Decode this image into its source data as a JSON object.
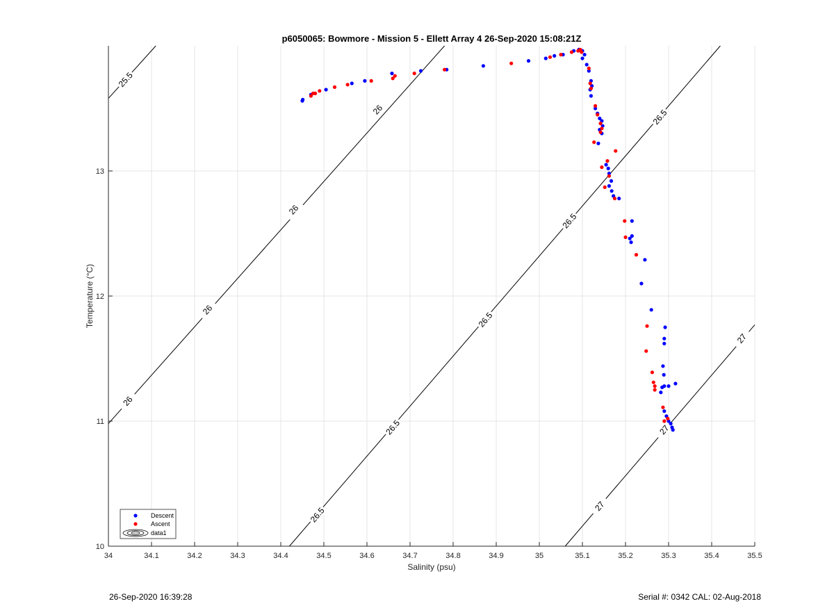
{
  "chart_data": {
    "type": "scatter",
    "title": "p6050065: Bowmore - Mission 5 - Ellett Array 4 26-Sep-2020 15:08:21Z",
    "xlabel": "Salinity (psu)",
    "ylabel": "Temperature (°C)",
    "xlim": [
      34,
      35.5
    ],
    "ylim": [
      10,
      14
    ],
    "x_ticks": [
      "34",
      "34.1",
      "34.2",
      "34.3",
      "34.4",
      "34.5",
      "34.6",
      "34.7",
      "34.8",
      "34.9",
      "35",
      "35.1",
      "35.2",
      "35.3",
      "35.4",
      "35.5"
    ],
    "y_ticks": [
      "10",
      "11",
      "12",
      "13"
    ],
    "grid": true,
    "legend_position": "bottom-left",
    "legend": [
      "Descent",
      "Ascent",
      "data1"
    ],
    "series": [
      {
        "name": "Descent",
        "color": "#0000ff",
        "points": [
          [
            34.45,
            13.56
          ],
          [
            34.451,
            13.57
          ],
          [
            34.47,
            13.61
          ],
          [
            34.505,
            13.65
          ],
          [
            34.565,
            13.7
          ],
          [
            34.595,
            13.72
          ],
          [
            34.658,
            13.78
          ],
          [
            34.725,
            13.8
          ],
          [
            34.785,
            13.81
          ],
          [
            34.87,
            13.84
          ],
          [
            34.975,
            13.88
          ],
          [
            35.015,
            13.9
          ],
          [
            35.035,
            13.92
          ],
          [
            35.055,
            13.93
          ],
          [
            35.08,
            13.96
          ],
          [
            35.092,
            13.97
          ],
          [
            35.1,
            13.96
          ],
          [
            35.105,
            13.93
          ],
          [
            35.1,
            13.9
          ],
          [
            35.11,
            13.85
          ],
          [
            35.115,
            13.8
          ],
          [
            35.12,
            13.72
          ],
          [
            35.122,
            13.68
          ],
          [
            35.118,
            13.65
          ],
          [
            35.12,
            13.6
          ],
          [
            35.13,
            13.5
          ],
          [
            35.135,
            13.46
          ],
          [
            35.14,
            13.42
          ],
          [
            35.145,
            13.4
          ],
          [
            35.147,
            13.36
          ],
          [
            35.14,
            13.33
          ],
          [
            35.145,
            13.3
          ],
          [
            35.137,
            13.22
          ],
          [
            35.155,
            13.05
          ],
          [
            35.16,
            13.02
          ],
          [
            35.162,
            12.98
          ],
          [
            35.167,
            12.92
          ],
          [
            35.162,
            12.88
          ],
          [
            35.168,
            12.84
          ],
          [
            35.172,
            12.8
          ],
          [
            35.185,
            12.78
          ],
          [
            35.215,
            12.6
          ],
          [
            35.21,
            12.46
          ],
          [
            35.215,
            12.48
          ],
          [
            35.213,
            12.43
          ],
          [
            35.245,
            12.29
          ],
          [
            35.237,
            12.1
          ],
          [
            35.26,
            11.89
          ],
          [
            35.292,
            11.75
          ],
          [
            35.29,
            11.66
          ],
          [
            35.29,
            11.62
          ],
          [
            35.287,
            11.44
          ],
          [
            35.289,
            11.37
          ],
          [
            35.285,
            11.27
          ],
          [
            35.29,
            11.28
          ],
          [
            35.3,
            11.28
          ],
          [
            35.282,
            11.23
          ],
          [
            35.316,
            11.3
          ],
          [
            35.29,
            11.08
          ],
          [
            35.295,
            11.04
          ],
          [
            35.3,
            11.0
          ],
          [
            35.305,
            10.98
          ],
          [
            35.308,
            10.95
          ],
          [
            35.31,
            10.93
          ]
        ]
      },
      {
        "name": "Ascent",
        "color": "#ff0000",
        "points": [
          [
            34.47,
            13.6
          ],
          [
            34.475,
            13.62
          ],
          [
            34.48,
            13.62
          ],
          [
            34.49,
            13.64
          ],
          [
            34.525,
            13.67
          ],
          [
            34.555,
            13.69
          ],
          [
            34.61,
            13.72
          ],
          [
            34.66,
            13.74
          ],
          [
            34.665,
            13.76
          ],
          [
            34.71,
            13.78
          ],
          [
            34.78,
            13.81
          ],
          [
            34.935,
            13.86
          ],
          [
            35.025,
            13.91
          ],
          [
            35.05,
            13.93
          ],
          [
            35.075,
            13.95
          ],
          [
            35.09,
            13.96
          ],
          [
            35.095,
            13.97
          ],
          [
            35.098,
            13.95
          ],
          [
            35.115,
            13.82
          ],
          [
            35.118,
            13.7
          ],
          [
            35.12,
            13.66
          ],
          [
            35.13,
            13.52
          ],
          [
            35.135,
            13.45
          ],
          [
            35.142,
            13.38
          ],
          [
            35.145,
            13.34
          ],
          [
            35.142,
            13.31
          ],
          [
            35.127,
            13.23
          ],
          [
            35.177,
            13.16
          ],
          [
            35.145,
            13.03
          ],
          [
            35.158,
            13.08
          ],
          [
            35.162,
            12.96
          ],
          [
            35.152,
            12.87
          ],
          [
            35.175,
            12.78
          ],
          [
            35.198,
            12.6
          ],
          [
            35.2,
            12.47
          ],
          [
            35.225,
            12.33
          ],
          [
            35.25,
            11.76
          ],
          [
            35.248,
            11.56
          ],
          [
            35.262,
            11.39
          ],
          [
            35.265,
            11.31
          ],
          [
            35.268,
            11.28
          ],
          [
            35.268,
            11.25
          ],
          [
            35.287,
            11.11
          ],
          [
            35.29,
            11.0
          ],
          [
            35.298,
            11.02
          ]
        ]
      }
    ],
    "contours": [
      {
        "value": "25.5",
        "points": [
          [
            34.0,
            13.58
          ],
          [
            34.11,
            14.0
          ]
        ],
        "labels": [
          [
            34.04,
            13.73
          ]
        ]
      },
      {
        "value": "26",
        "points": [
          [
            34.0,
            10.98
          ],
          [
            34.78,
            14.0
          ]
        ],
        "labels": [
          [
            34.045,
            11.16
          ],
          [
            34.23,
            11.89
          ],
          [
            34.43,
            12.69
          ],
          [
            34.625,
            13.49
          ]
        ]
      },
      {
        "value": "26.5",
        "points": [
          [
            34.42,
            10.0
          ],
          [
            35.42,
            14.0
          ]
        ],
        "labels": [
          [
            34.485,
            10.25
          ],
          [
            34.66,
            10.95
          ],
          [
            34.875,
            11.81
          ],
          [
            35.07,
            12.6
          ],
          [
            35.28,
            13.43
          ]
        ]
      },
      {
        "value": "27",
        "points": [
          [
            35.06,
            10.0
          ],
          [
            35.5,
            11.77
          ]
        ],
        "labels": [
          [
            35.14,
            10.32
          ],
          [
            35.29,
            10.93
          ],
          [
            35.47,
            11.66
          ]
        ]
      }
    ]
  },
  "footer": {
    "left": "26-Sep-2020 16:39:28",
    "right": "Serial #: 0342  CAL: 02-Aug-2018"
  }
}
